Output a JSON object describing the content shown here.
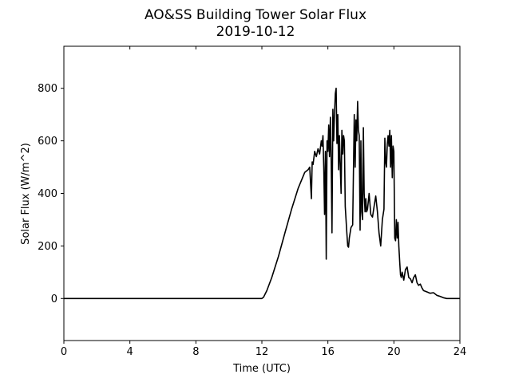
{
  "chart_data": {
    "type": "line",
    "title": "AO&SS Building Tower Solar Flux",
    "subtitle": "2019-10-12",
    "xlabel": "Time (UTC)",
    "ylabel": "Solar Flux (W/m^2)",
    "xlim": [
      0,
      24
    ],
    "ylim": [
      -160,
      960
    ],
    "xticks": [
      0,
      4,
      8,
      12,
      16,
      20,
      24
    ],
    "yticks": [
      0,
      200,
      400,
      600,
      800
    ],
    "grid": false,
    "legend": "none",
    "line_color": "#000000",
    "series": [
      {
        "x": [
          0,
          2,
          4,
          6,
          8,
          10,
          11,
          12,
          12.1,
          12.3,
          12.6,
          13.0,
          13.4,
          13.8,
          14.2,
          14.6,
          14.8,
          14.9,
          15.0,
          15.05,
          15.1,
          15.2,
          15.3,
          15.4,
          15.5,
          15.6,
          15.65,
          15.7,
          15.75,
          15.8,
          15.85,
          15.9,
          15.95,
          16.0,
          16.05,
          16.1,
          16.15,
          16.2,
          16.25,
          16.3,
          16.35,
          16.4,
          16.45,
          16.5,
          16.55,
          16.6,
          16.65,
          16.7,
          16.75,
          16.8,
          16.85,
          16.9,
          16.95,
          17.0,
          17.05,
          17.1,
          17.15,
          17.2,
          17.25,
          17.3,
          17.4,
          17.5,
          17.6,
          17.65,
          17.7,
          17.75,
          17.8,
          17.85,
          17.9,
          17.95,
          18.0,
          18.05,
          18.1,
          18.15,
          18.2,
          18.25,
          18.3,
          18.35,
          18.4,
          18.5,
          18.6,
          18.7,
          18.8,
          18.9,
          19.0,
          19.1,
          19.2,
          19.3,
          19.4,
          19.45,
          19.5,
          19.55,
          19.6,
          19.65,
          19.7,
          19.75,
          19.8,
          19.85,
          19.9,
          19.95,
          20.0,
          20.05,
          20.1,
          20.15,
          20.2,
          20.25,
          20.3,
          20.35,
          20.4,
          20.45,
          20.5,
          20.6,
          20.7,
          20.8,
          20.9,
          21.0,
          21.1,
          21.2,
          21.3,
          21.4,
          21.5,
          21.6,
          21.7,
          21.8,
          22.0,
          22.2,
          22.4,
          22.6,
          22.8,
          23.0,
          23.2,
          23.4,
          24.0
        ],
        "y": [
          0,
          0,
          0,
          0,
          0,
          0,
          0,
          0,
          5,
          30,
          80,
          160,
          250,
          340,
          420,
          480,
          490,
          500,
          380,
          520,
          510,
          560,
          540,
          570,
          550,
          600,
          580,
          620,
          500,
          320,
          560,
          150,
          600,
          560,
          660,
          540,
          690,
          520,
          250,
          720,
          600,
          700,
          780,
          800,
          590,
          700,
          490,
          620,
          500,
          400,
          640,
          550,
          620,
          600,
          350,
          300,
          250,
          200,
          195,
          230,
          270,
          280,
          700,
          500,
          680,
          600,
          750,
          640,
          620,
          260,
          600,
          330,
          300,
          650,
          400,
          330,
          380,
          330,
          340,
          400,
          320,
          310,
          350,
          390,
          330,
          250,
          200,
          300,
          340,
          610,
          520,
          500,
          590,
          620,
          580,
          640,
          500,
          620,
          460,
          580,
          560,
          230,
          220,
          300,
          230,
          290,
          200,
          140,
          90,
          80,
          100,
          70,
          110,
          120,
          80,
          75,
          60,
          80,
          90,
          60,
          50,
          55,
          40,
          30,
          25,
          20,
          22,
          12,
          8,
          3,
          0,
          0,
          0
        ]
      }
    ]
  }
}
